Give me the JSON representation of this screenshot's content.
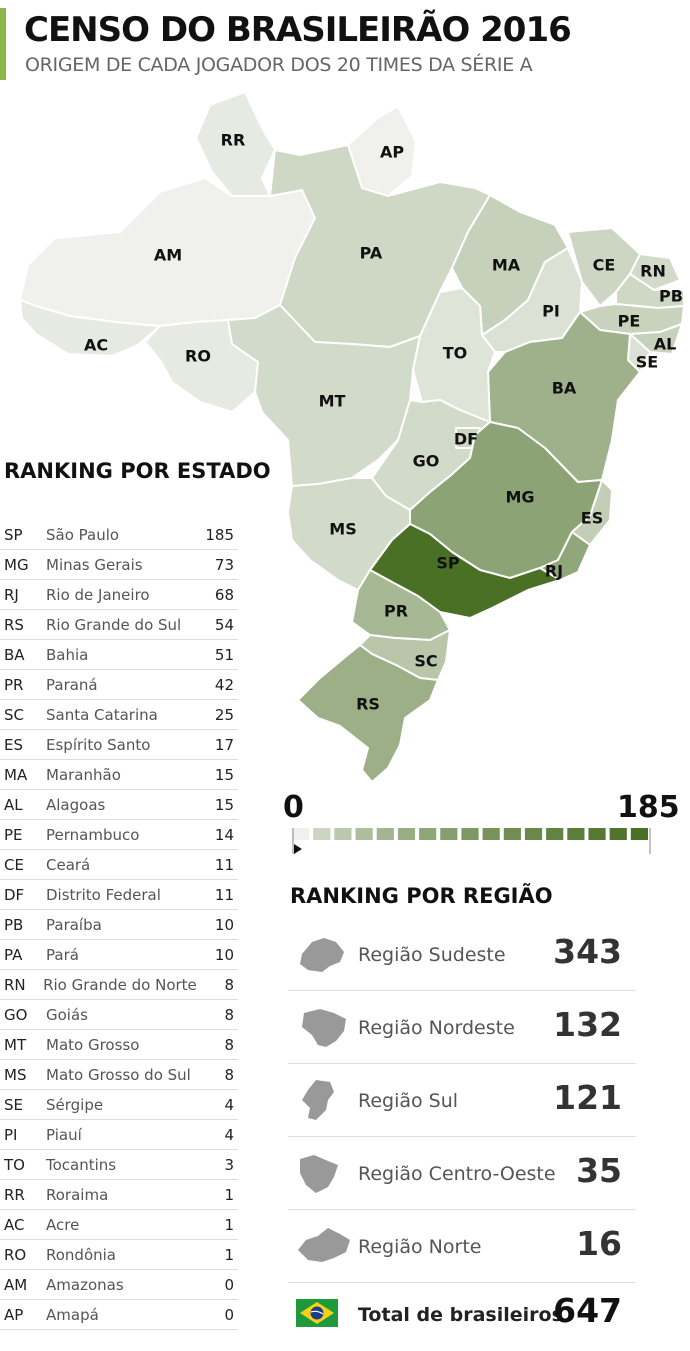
{
  "header": {
    "title": "CENSO DO BRASILEIRÃO 2016",
    "subtitle": "ORIGEM DE CADA JOGADOR DOS 20 TIMES DA SÉRIE A"
  },
  "colors": {
    "accent": "#8bb64c",
    "scale_low": "#f0f1ed",
    "scale_high": "#4a7025"
  },
  "chart_data": {
    "type": "table",
    "title": "RANKING POR ESTADO",
    "scale": {
      "min": 0,
      "max": 185,
      "min_label": "0",
      "max_label": "185",
      "steps": 17
    },
    "states": [
      {
        "abbr": "SP",
        "name": "São Paulo",
        "value": 185
      },
      {
        "abbr": "MG",
        "name": "Minas Gerais",
        "value": 73
      },
      {
        "abbr": "RJ",
        "name": "Rio de Janeiro",
        "value": 68
      },
      {
        "abbr": "RS",
        "name": "Rio Grande do Sul",
        "value": 54
      },
      {
        "abbr": "BA",
        "name": "Bahia",
        "value": 51
      },
      {
        "abbr": "PR",
        "name": "Paraná",
        "value": 42
      },
      {
        "abbr": "SC",
        "name": "Santa Catarina",
        "value": 25
      },
      {
        "abbr": "ES",
        "name": "Espírito Santo",
        "value": 17
      },
      {
        "abbr": "MA",
        "name": "Maranhão",
        "value": 15
      },
      {
        "abbr": "AL",
        "name": "Alagoas",
        "value": 15
      },
      {
        "abbr": "PE",
        "name": "Pernambuco",
        "value": 14
      },
      {
        "abbr": "CE",
        "name": "Ceará",
        "value": 11
      },
      {
        "abbr": "DF",
        "name": "Distrito Federal",
        "value": 11
      },
      {
        "abbr": "PB",
        "name": "Paraíba",
        "value": 10
      },
      {
        "abbr": "PA",
        "name": "Pará",
        "value": 10
      },
      {
        "abbr": "RN",
        "name": "Rio Grande do Norte",
        "value": 8
      },
      {
        "abbr": "GO",
        "name": "Goiás",
        "value": 8
      },
      {
        "abbr": "MT",
        "name": "Mato Grosso",
        "value": 8
      },
      {
        "abbr": "MS",
        "name": "Mato Grosso do Sul",
        "value": 8
      },
      {
        "abbr": "SE",
        "name": "Sérgipe",
        "value": 4
      },
      {
        "abbr": "PI",
        "name": "Piauí",
        "value": 4
      },
      {
        "abbr": "TO",
        "name": "Tocantins",
        "value": 3
      },
      {
        "abbr": "RR",
        "name": "Roraima",
        "value": 1
      },
      {
        "abbr": "AC",
        "name": "Acre",
        "value": 1
      },
      {
        "abbr": "RO",
        "name": "Rondônia",
        "value": 1
      },
      {
        "abbr": "AM",
        "name": "Amazonas",
        "value": 0
      },
      {
        "abbr": "AP",
        "name": "Amapá",
        "value": 0
      }
    ],
    "regions_title": "RANKING POR REGIÃO",
    "regions": [
      {
        "name": "Região Sudeste",
        "value": 343,
        "icon": "sudeste-region-icon"
      },
      {
        "name": "Região Nordeste",
        "value": 132,
        "icon": "nordeste-region-icon"
      },
      {
        "name": "Região Sul",
        "value": 121,
        "icon": "sul-region-icon"
      },
      {
        "name": "Região Centro-Oeste",
        "value": 35,
        "icon": "centro-oeste-region-icon"
      },
      {
        "name": "Região Norte",
        "value": 16,
        "icon": "norte-region-icon"
      }
    ],
    "total": {
      "label": "Total de brasileiros",
      "value": 647,
      "icon": "brazil-flag-icon"
    }
  }
}
